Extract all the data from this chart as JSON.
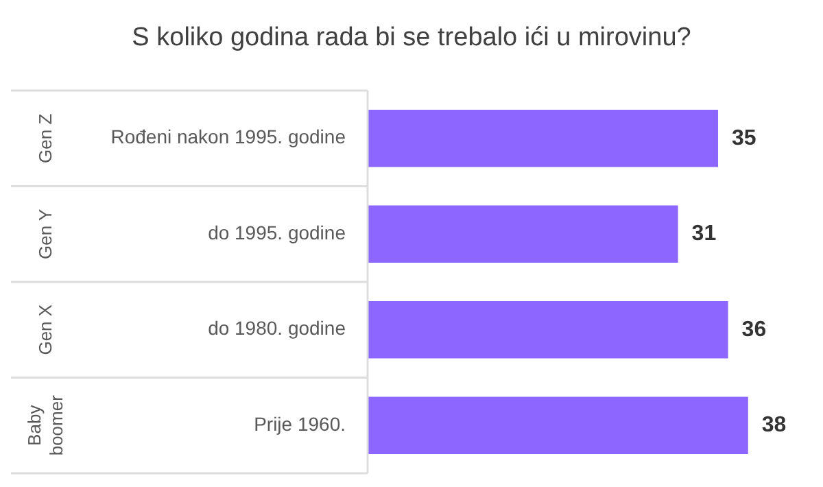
{
  "chart_data": {
    "type": "bar",
    "orientation": "horizontal",
    "title": "S koliko godina rada bi se trebalo ići u mirovinu?",
    "categories": [
      "Rođeni nakon 1995. godine",
      "do 1995. godine",
      "do 1980. godine",
      "Prije 1960."
    ],
    "values": [
      35,
      31,
      36,
      38
    ],
    "color": "#8c66ff",
    "data_labels": true,
    "legend": false,
    "annotations": [
      "Gen Z",
      "Gen Y",
      "Gen X",
      "Baby boomer"
    ]
  }
}
